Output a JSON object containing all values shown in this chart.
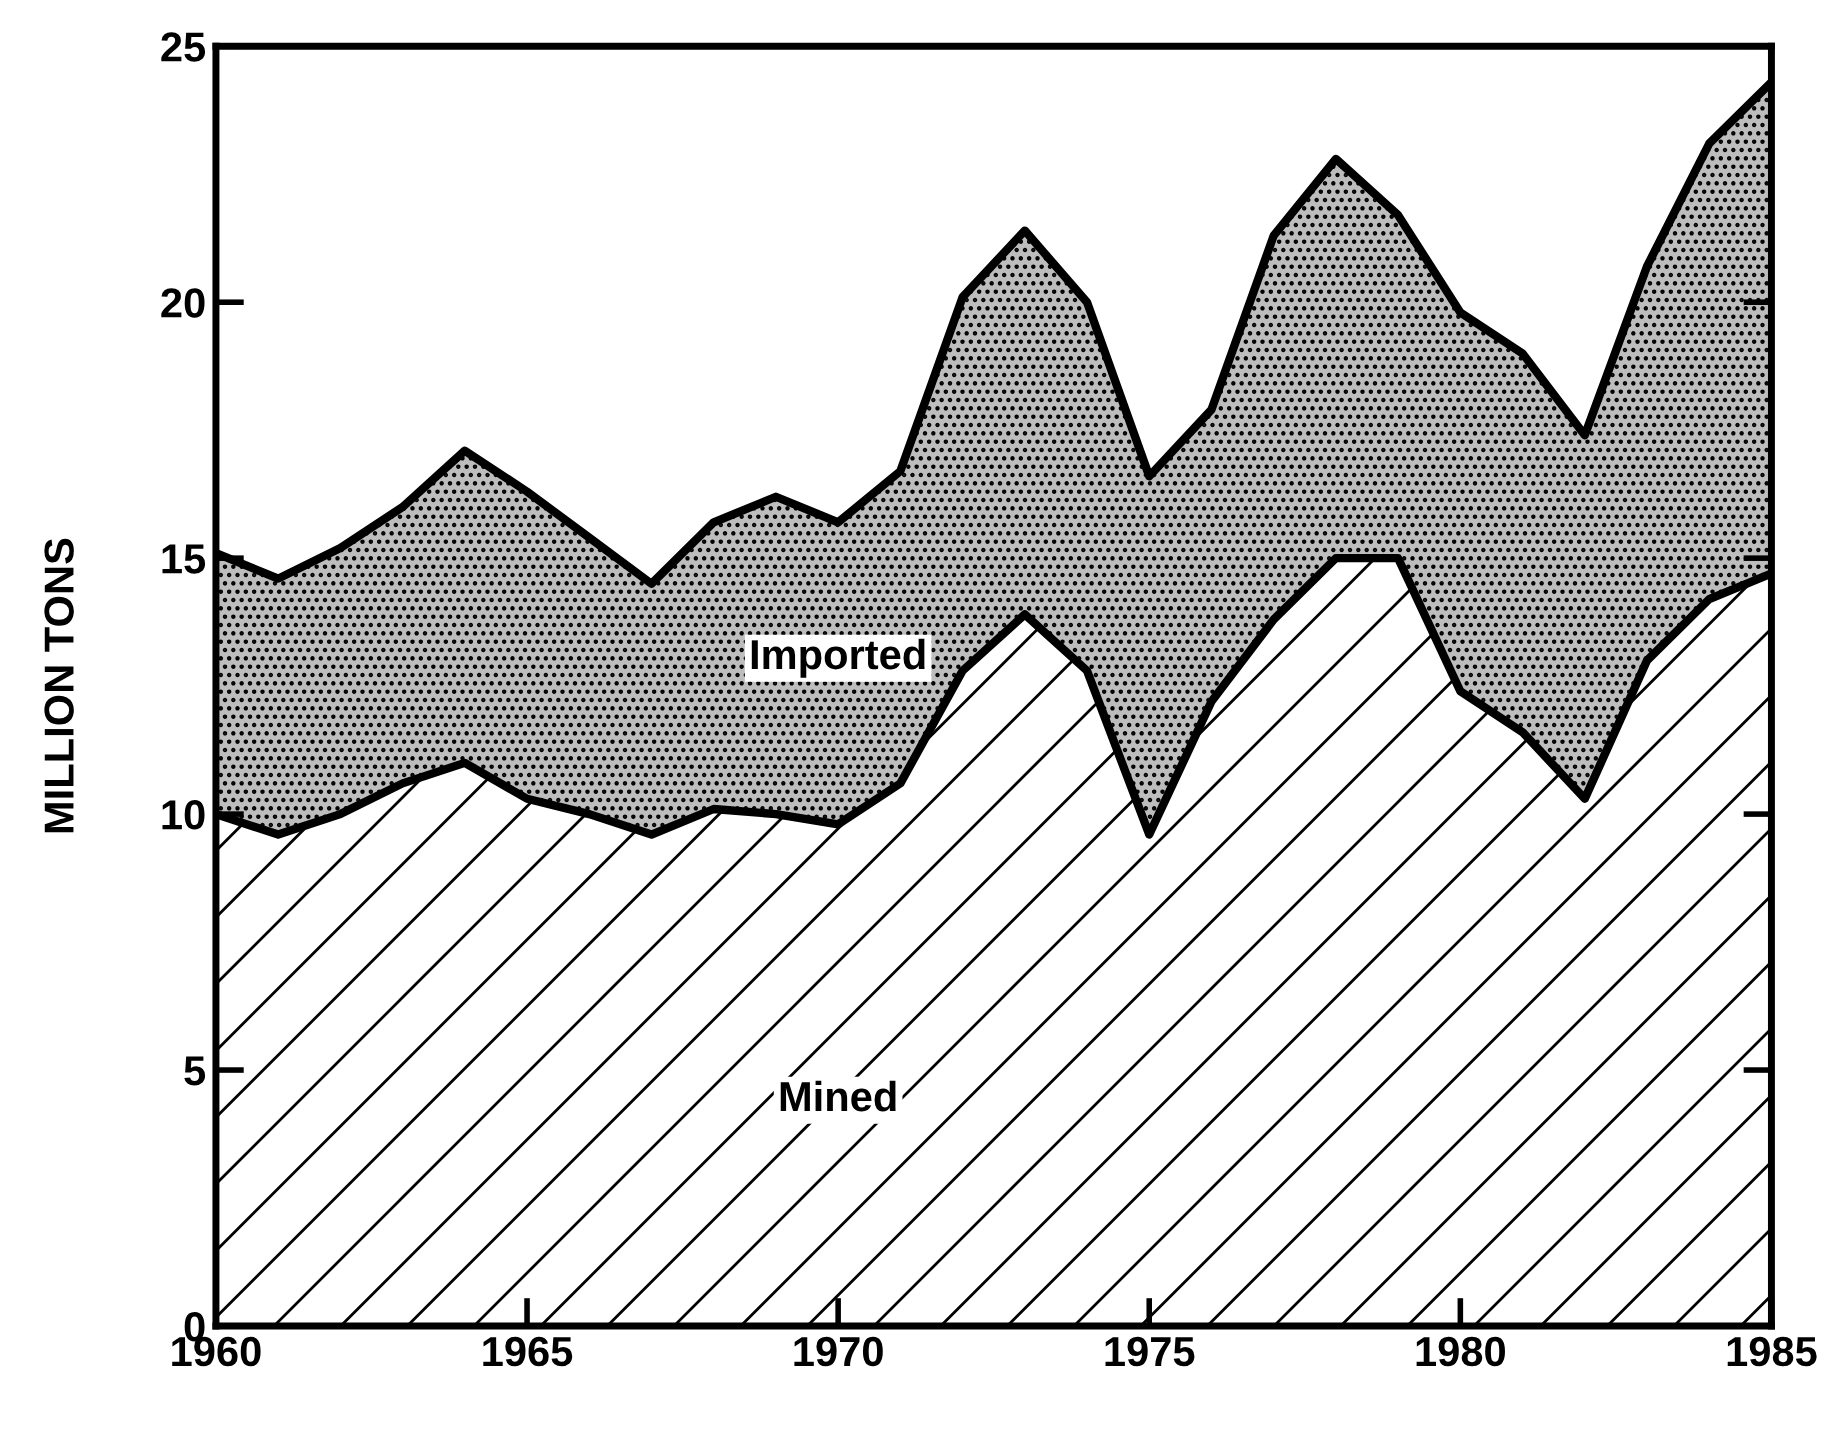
{
  "chart_data": {
    "type": "area",
    "stacked": true,
    "ylabel": "MILLION TONS",
    "x": [
      1960,
      1961,
      1962,
      1963,
      1964,
      1965,
      1966,
      1967,
      1968,
      1969,
      1970,
      1971,
      1972,
      1973,
      1974,
      1975,
      1976,
      1977,
      1978,
      1979,
      1980,
      1981,
      1982,
      1983,
      1984,
      1985
    ],
    "series": [
      {
        "name": "Mined",
        "color": "#ffffff",
        "values": [
          10.0,
          9.6,
          10.0,
          10.6,
          11.0,
          10.3,
          10.0,
          9.6,
          10.1,
          10.0,
          9.8,
          10.6,
          12.8,
          13.9,
          12.8,
          9.6,
          12.2,
          13.8,
          15.0,
          15.0,
          12.4,
          11.6,
          10.3,
          13.0,
          14.2,
          14.7
        ]
      },
      {
        "name": "Imported",
        "color": "#bdbdbd",
        "values": [
          5.1,
          5.0,
          5.2,
          5.4,
          6.1,
          6.0,
          5.4,
          4.9,
          5.6,
          6.2,
          5.9,
          6.1,
          7.3,
          7.5,
          7.2,
          7.0,
          5.7,
          7.5,
          7.8,
          6.7,
          7.4,
          7.4,
          7.1,
          7.7,
          8.9,
          9.6
        ]
      }
    ],
    "xlim": [
      1960,
      1985
    ],
    "ylim": [
      0,
      25
    ],
    "xticks": [
      1960,
      1965,
      1970,
      1975,
      1980,
      1985
    ],
    "yticks": [
      0,
      5,
      10,
      15,
      20,
      25
    ],
    "grid": false,
    "legend": false
  }
}
